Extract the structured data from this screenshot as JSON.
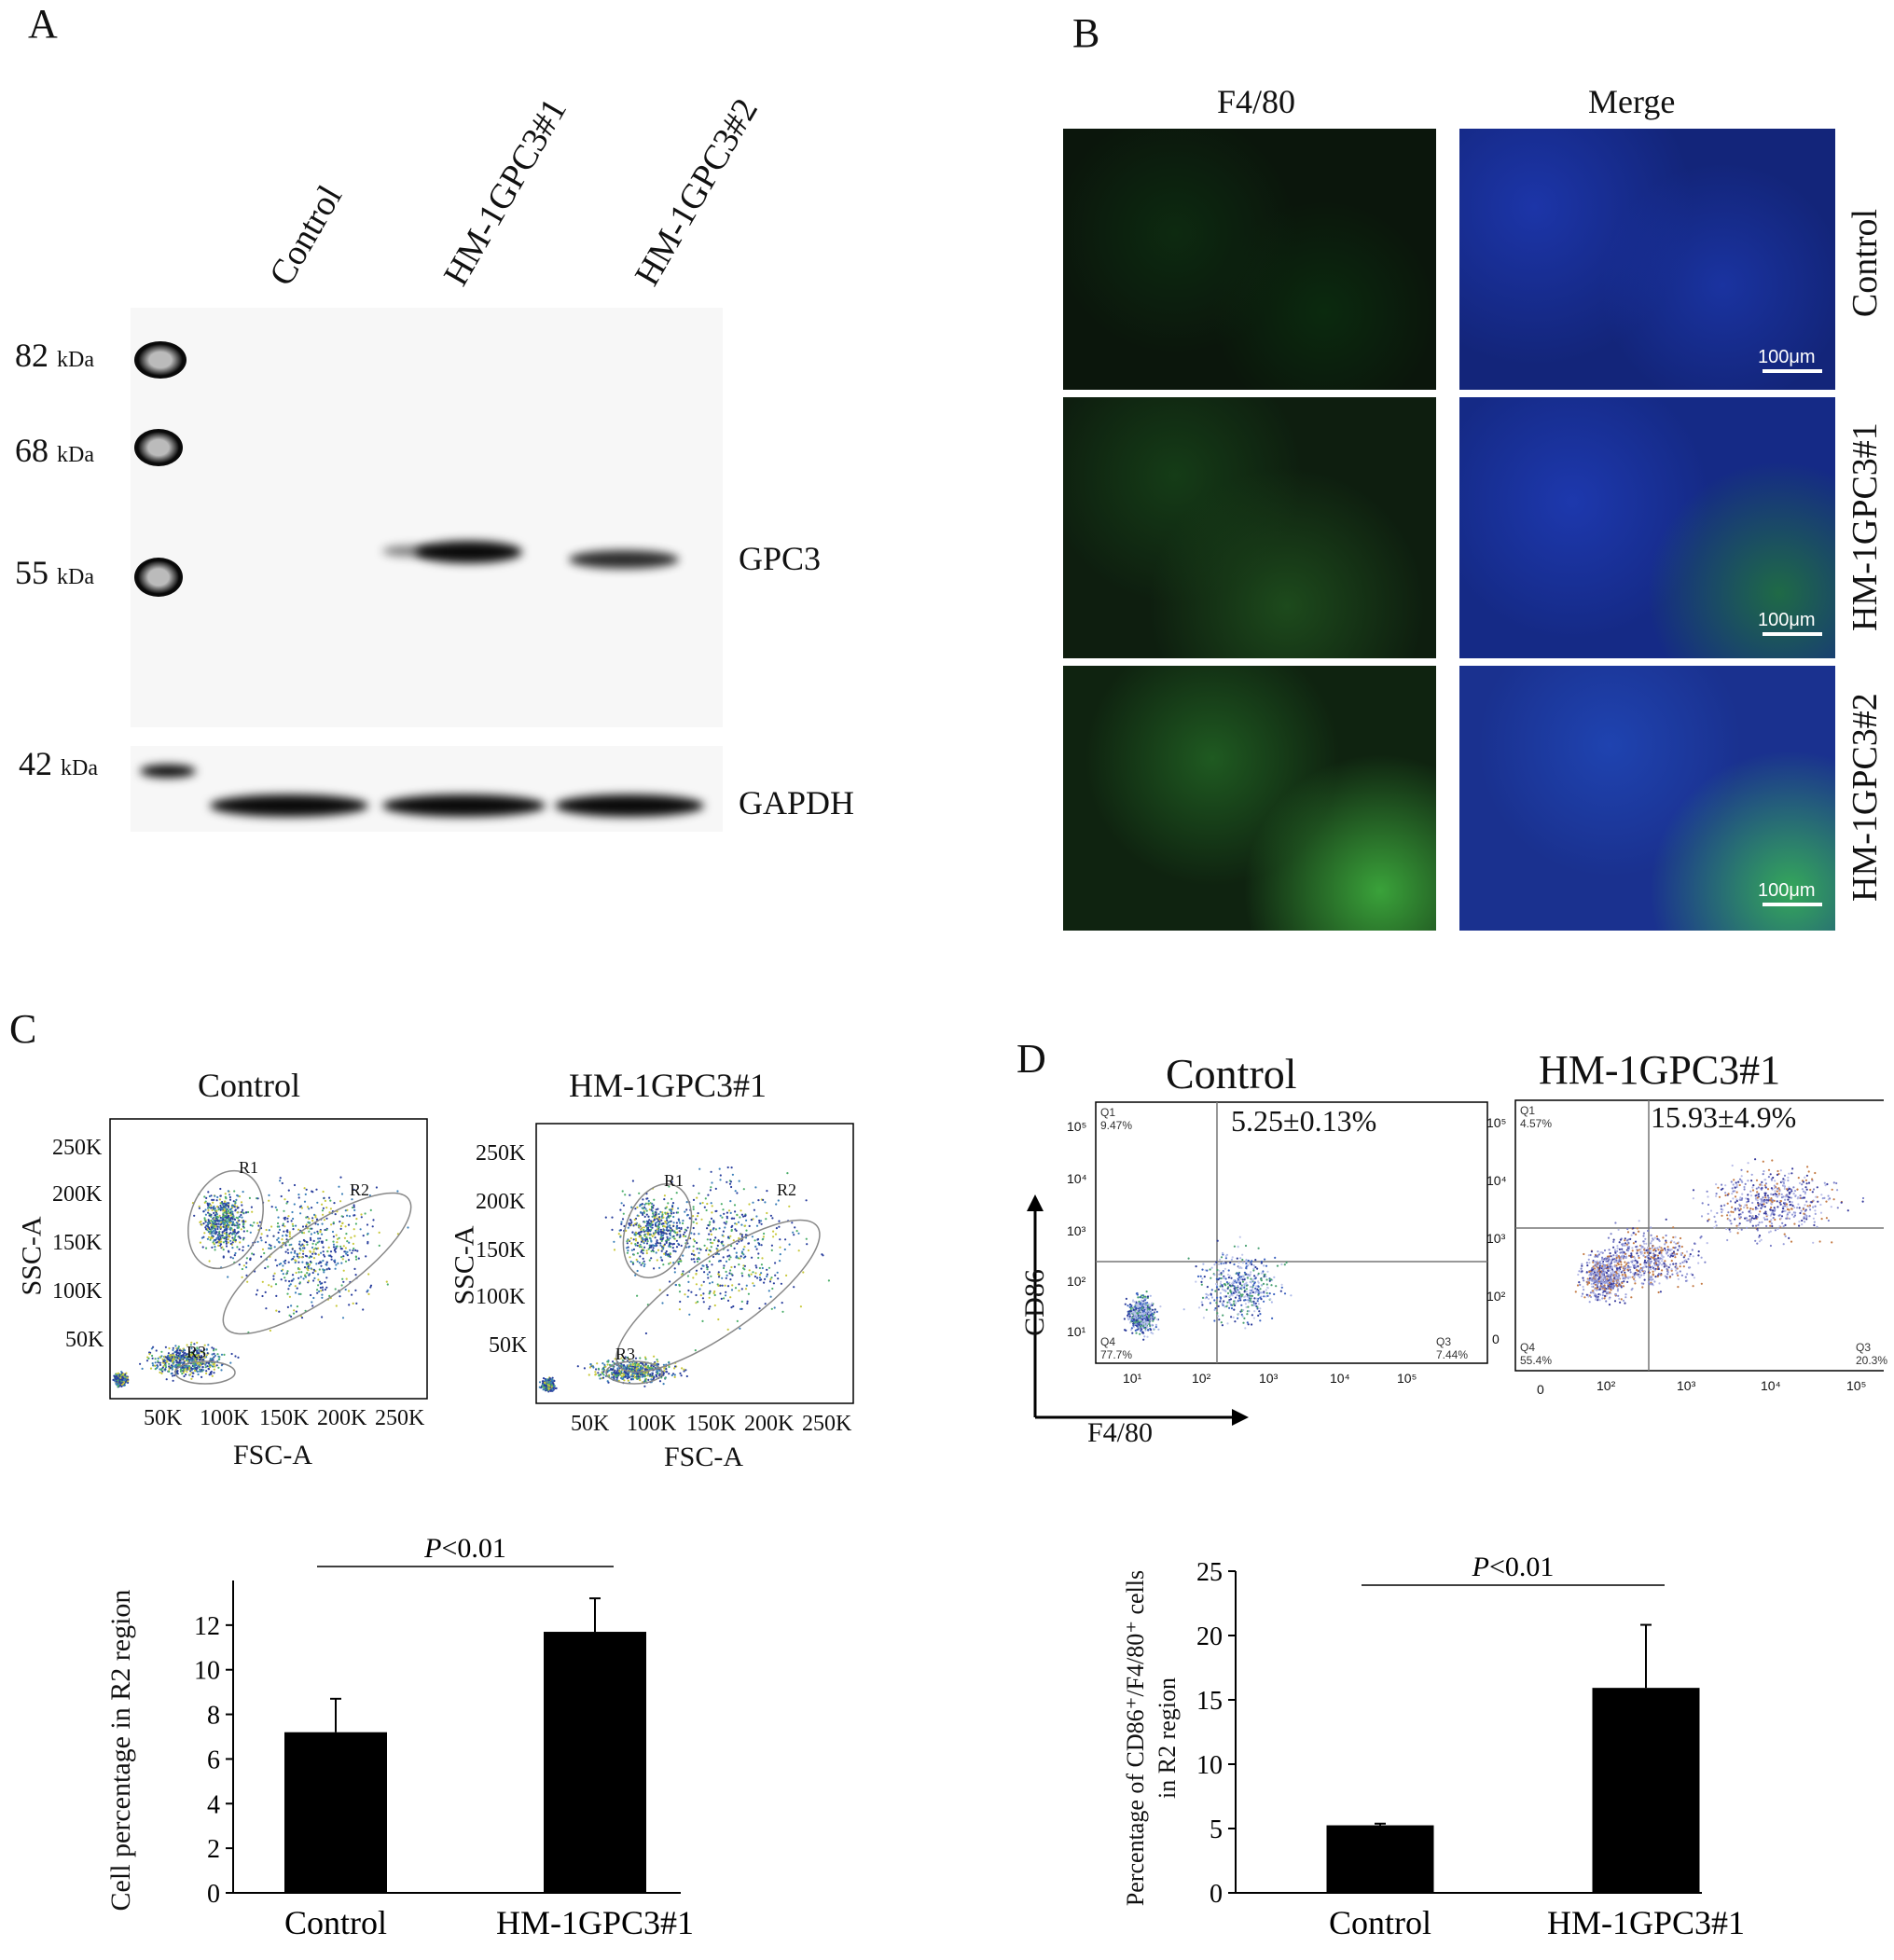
{
  "panelA": {
    "letter": "A",
    "lanes": [
      "Control",
      "HM-1GPC3#1",
      "HM-1GPC3#2"
    ],
    "markers": [
      {
        "value": "82",
        "unit": "kDa"
      },
      {
        "value": "68",
        "unit": "kDa"
      },
      {
        "value": "55",
        "unit": "kDa"
      },
      {
        "value": "42",
        "unit": "kDa"
      }
    ],
    "proteins": [
      "GPC3",
      "GAPDH"
    ]
  },
  "panelB": {
    "letter": "B",
    "columns": [
      "F4/80",
      "Merge"
    ],
    "rows": [
      "Control",
      "HM-1GPC3#1",
      "HM-1GPC3#2"
    ],
    "scalebar": "100μm"
  },
  "panelC": {
    "letter": "C",
    "plots": [
      {
        "title": "Control",
        "xlabel": "FSC-A",
        "ylabel": "SSC-A",
        "yticks": [
          "250K",
          "200K",
          "150K",
          "100K",
          "50K"
        ],
        "xticks": [
          "50K",
          "100K",
          "150K",
          "200K",
          "250K"
        ],
        "gates": [
          "R1",
          "R2",
          "R3"
        ]
      },
      {
        "title": "HM-1GPC3#1",
        "xlabel": "FSC-A",
        "ylabel": "SSC-A",
        "yticks": [
          "250K",
          "200K",
          "150K",
          "100K",
          "50K"
        ],
        "xticks": [
          "50K",
          "100K",
          "150K",
          "200K",
          "250K"
        ],
        "gates": [
          "R1",
          "R2",
          "R3"
        ]
      }
    ]
  },
  "panelD": {
    "letter": "D",
    "plots": [
      {
        "title": "Control",
        "stat": "5.25±0.13%",
        "q1": "9.47%",
        "q4": "77.7%",
        "q3": "7.44%",
        "q1_label": "Q1",
        "q4_label": "Q4",
        "q3_label": "Q3",
        "yticks": [
          "10⁵",
          "10⁴",
          "10³",
          "10²",
          "10¹"
        ],
        "xticks": [
          "10¹",
          "10²",
          "10³",
          "10⁴",
          "10⁵"
        ]
      },
      {
        "title": "HM-1GPC3#1",
        "stat": "15.93±4.9%",
        "q1": "4.57%",
        "q4": "55.4%",
        "q3": "20.3%",
        "q1_label": "Q1",
        "q4_label": "Q4",
        "q3_label": "Q3",
        "yticks": [
          "10⁵",
          "10⁴",
          "10³",
          "10²",
          "0"
        ],
        "xticks": [
          "0",
          "10²",
          "10³",
          "10⁴",
          "10⁵"
        ]
      }
    ],
    "ylabel": "CD86",
    "xlabel": "F4/80"
  },
  "chart_data": [
    {
      "type": "bar",
      "categories": [
        "Control",
        "HM-1GPC3#1"
      ],
      "values": [
        7.2,
        11.7
      ],
      "errors": [
        1.5,
        1.5
      ],
      "ylabel": "Cell percentage in R2 region",
      "ylim": [
        0,
        14
      ],
      "yticks": [
        0,
        2,
        4,
        6,
        8,
        10,
        12
      ],
      "annotation": "P<0.01"
    },
    {
      "type": "bar",
      "categories": [
        "Control",
        "HM-1GPC3#1"
      ],
      "values": [
        5.25,
        15.93
      ],
      "errors": [
        0.13,
        4.9
      ],
      "ylabel_line1": "Percentage of CD86⁺/F4/80⁺ cells",
      "ylabel_line2": "in R2 region",
      "ylim": [
        0,
        25
      ],
      "yticks": [
        0,
        5,
        10,
        15,
        20,
        25
      ],
      "annotation": "P<0.01"
    }
  ]
}
